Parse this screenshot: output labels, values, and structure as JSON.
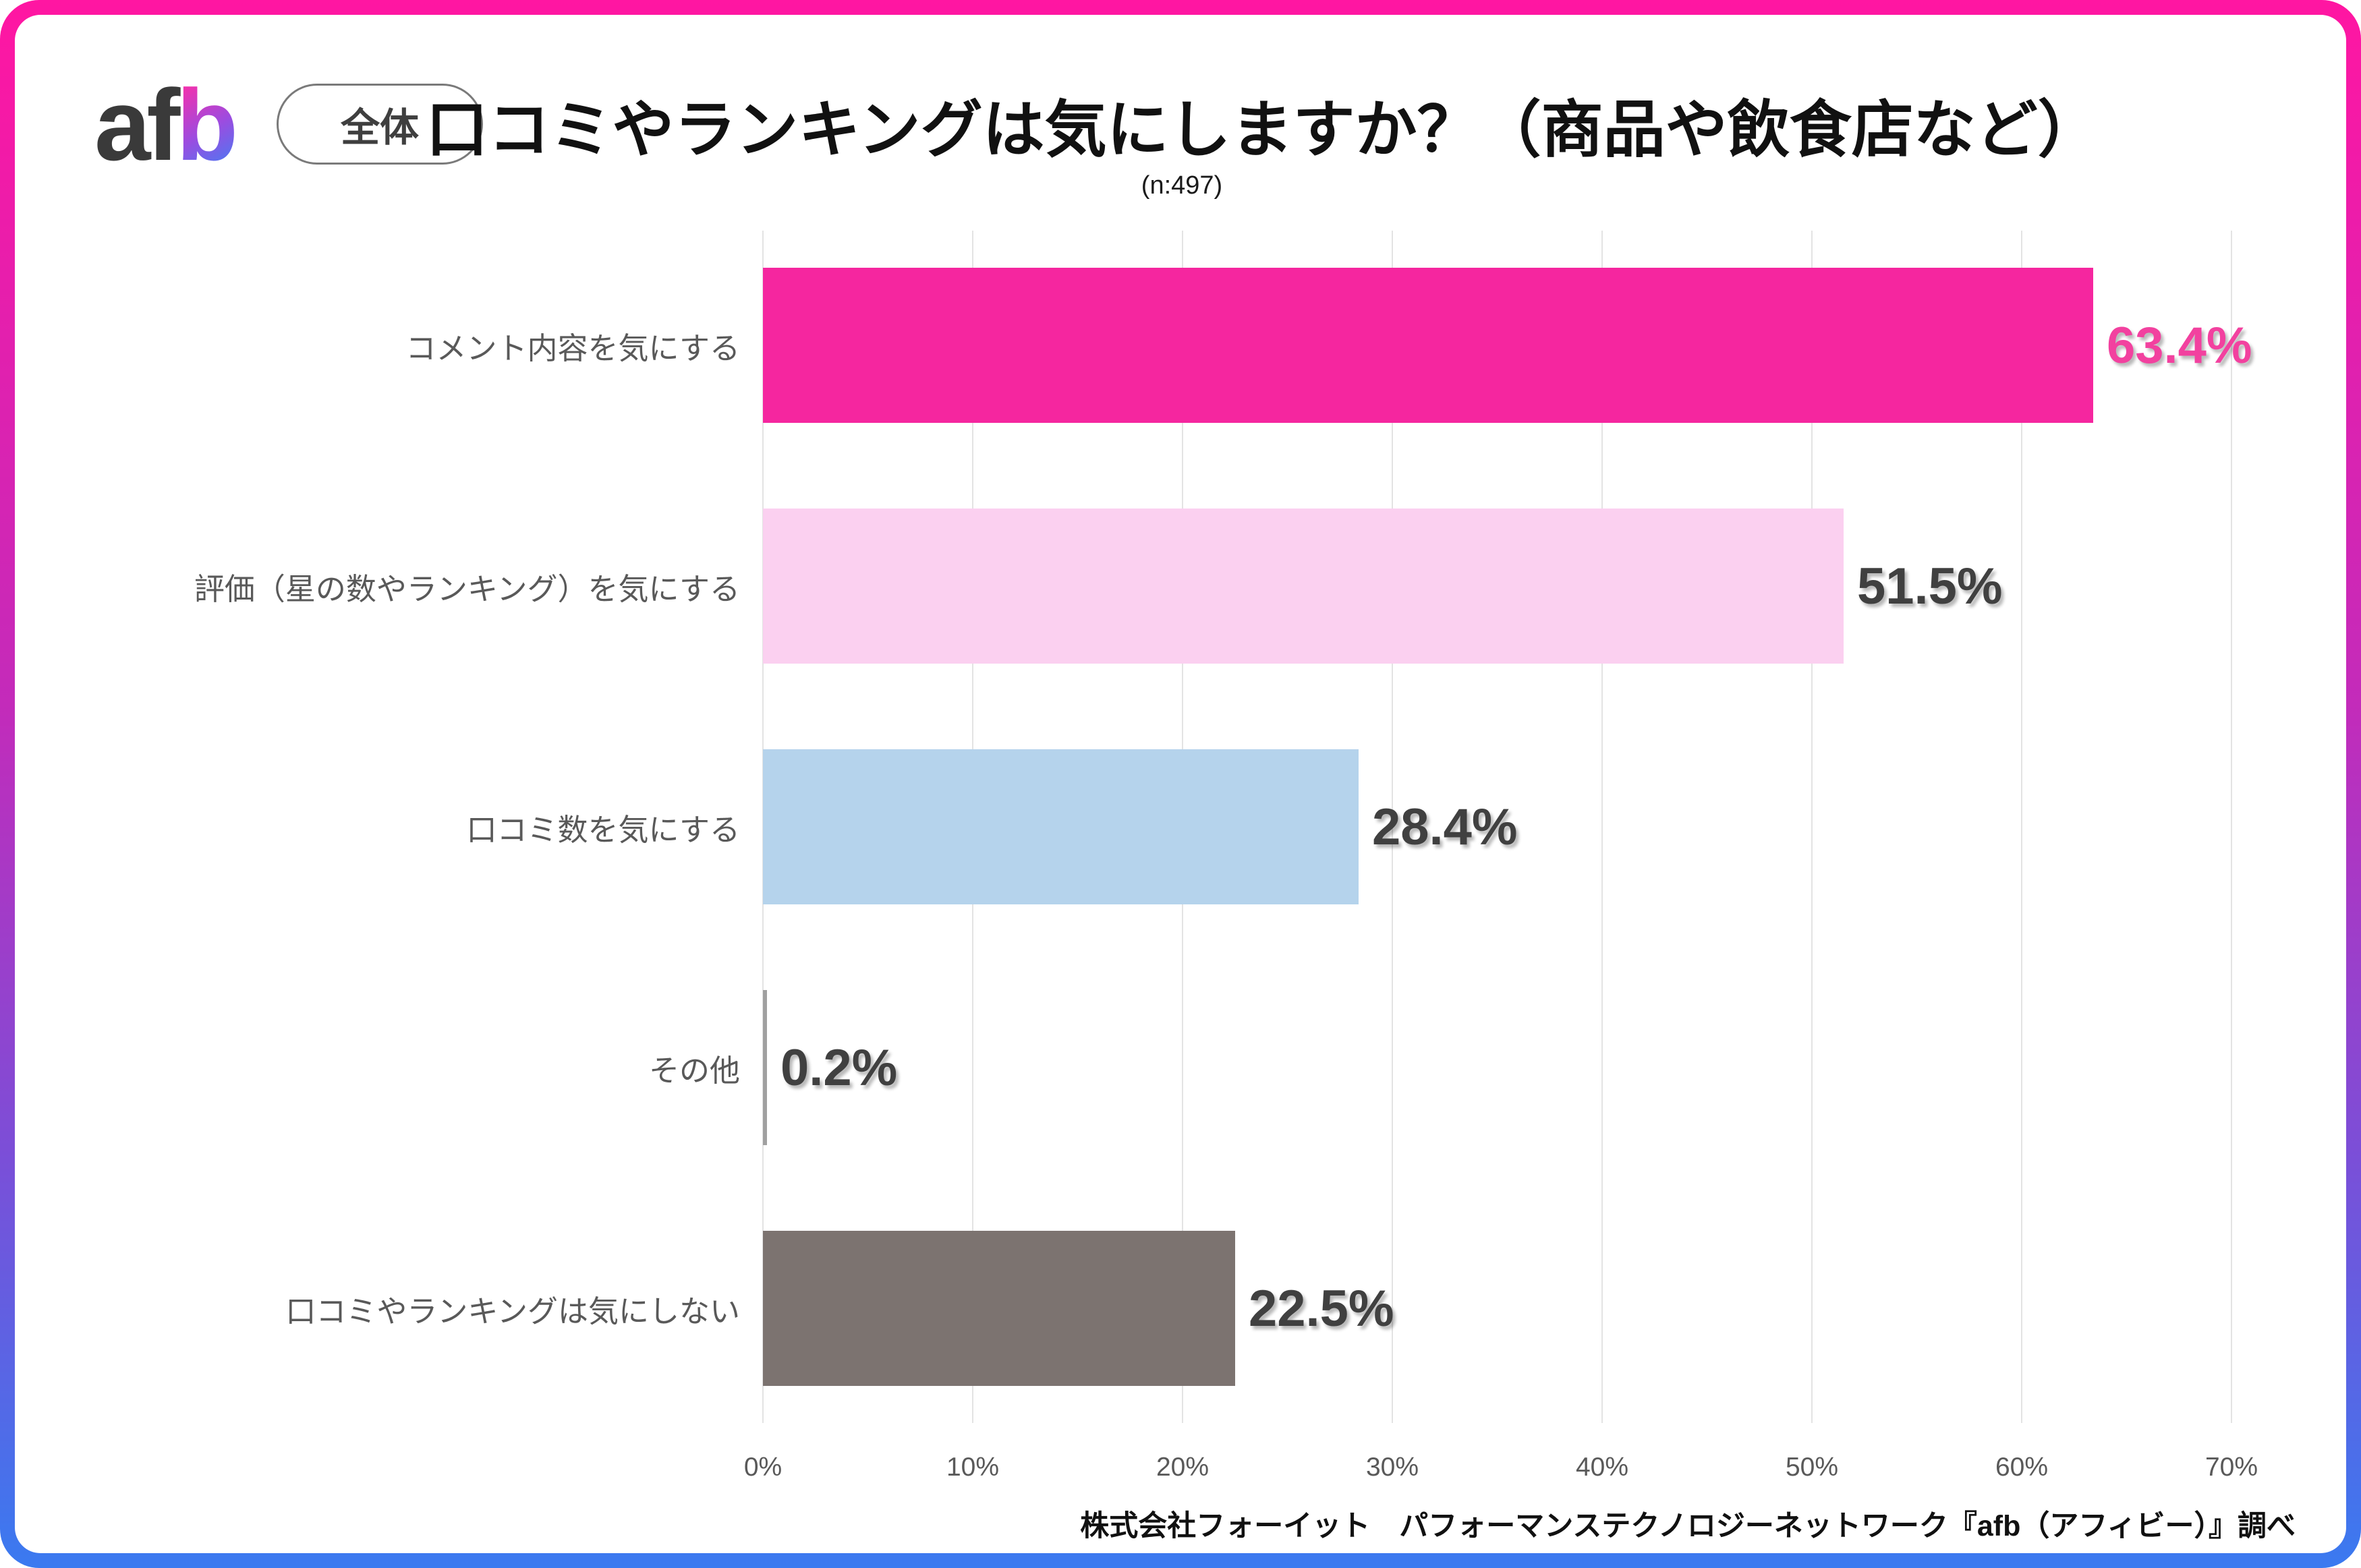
{
  "page": {
    "logo_af": "af",
    "logo_b": "b",
    "badge_label": "全体",
    "title": "口コミやランキングは気にしますか？（商品や飲食店など）",
    "sample_label": "(n:497)",
    "source_note": "株式会社フォーイット　パフォーマンステクノロジーネットワーク『afb（アフィビー）』調べ"
  },
  "colors": {
    "frame_gradient": [
      "#ff16a2",
      "#c32bba",
      "#3a7af0"
    ],
    "logo_af": "#3a3a3a",
    "logo_b_gradient": [
      "#ff2da6",
      "#9b4ce0",
      "#3b82f6"
    ],
    "grid_line": "#e3e3e3",
    "axis_text": "#595959",
    "category_text": "#595959",
    "value_text_default": "#404040",
    "value_text_highlight": "#f2419f"
  },
  "chart_data": {
    "type": "bar",
    "orientation": "horizontal",
    "title": "口コミやランキングは気にしますか？（商品や飲食店など）",
    "subtitle": "(n:497)",
    "sample_size": 497,
    "categories": [
      "コメント内容を気にする",
      "評価（星の数やランキング）を気にする",
      "口コミ数を気にする",
      "その他",
      "口コミやランキングは気にしない"
    ],
    "values": [
      63.4,
      51.5,
      28.4,
      0.2,
      22.5
    ],
    "value_labels": [
      "63.4%",
      "51.5%",
      "28.4%",
      "0.2%",
      "22.5%"
    ],
    "bar_colors": [
      "#f5269f",
      "#fbd0f0",
      "#b5d3ec",
      "#a0a0a0",
      "#7c7370"
    ],
    "value_label_colors": [
      "#f2419f",
      "#404040",
      "#404040",
      "#404040",
      "#404040"
    ],
    "xlabel": "",
    "ylabel": "",
    "xlim": [
      0,
      70
    ],
    "ticks": [
      0,
      10,
      20,
      30,
      40,
      50,
      60,
      70
    ],
    "tick_labels": [
      "0%",
      "10%",
      "20%",
      "30%",
      "40%",
      "50%",
      "60%",
      "70%"
    ],
    "grid": true,
    "legend": false,
    "source": "株式会社フォーイット　パフォーマンステクノロジーネットワーク『afb（アフィビー）』調べ"
  }
}
